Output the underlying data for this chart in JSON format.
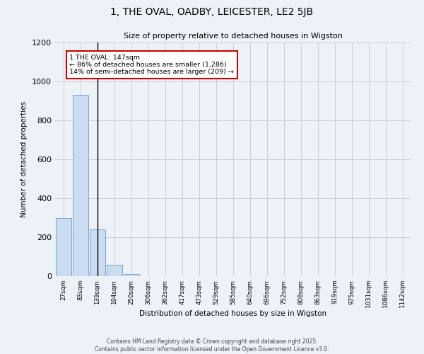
{
  "title1": "1, THE OVAL, OADBY, LEICESTER, LE2 5JB",
  "title2": "Size of property relative to detached houses in Wigston",
  "xlabel": "Distribution of detached houses by size in Wigston",
  "ylabel": "Number of detached properties",
  "bar_labels": [
    "27sqm",
    "83sqm",
    "139sqm",
    "194sqm",
    "250sqm",
    "306sqm",
    "362sqm",
    "417sqm",
    "473sqm",
    "529sqm",
    "585sqm",
    "640sqm",
    "696sqm",
    "752sqm",
    "808sqm",
    "863sqm",
    "919sqm",
    "975sqm",
    "1031sqm",
    "1086sqm",
    "1142sqm"
  ],
  "bar_values": [
    300,
    930,
    240,
    60,
    10,
    0,
    0,
    0,
    0,
    0,
    0,
    0,
    0,
    0,
    0,
    0,
    0,
    0,
    0,
    0,
    0
  ],
  "bar_color": "#ccdcf0",
  "bar_edge_color": "#6699cc",
  "vline_x": 2,
  "vline_color": "#000000",
  "annotation_text": "1 THE OVAL: 147sqm\n← 86% of detached houses are smaller (1,286)\n14% of semi-detached houses are larger (209) →",
  "annotation_box_color": "#ffffff",
  "annotation_border_color": "#cc0000",
  "ylim": [
    0,
    1200
  ],
  "yticks": [
    0,
    200,
    400,
    600,
    800,
    1000,
    1200
  ],
  "grid_color": "#cccccc",
  "background_color": "#edf2f8",
  "footer1": "Contains HM Land Registry data © Crown copyright and database right 2025.",
  "footer2": "Contains public sector information licensed under the Open Government Licence v3.0."
}
